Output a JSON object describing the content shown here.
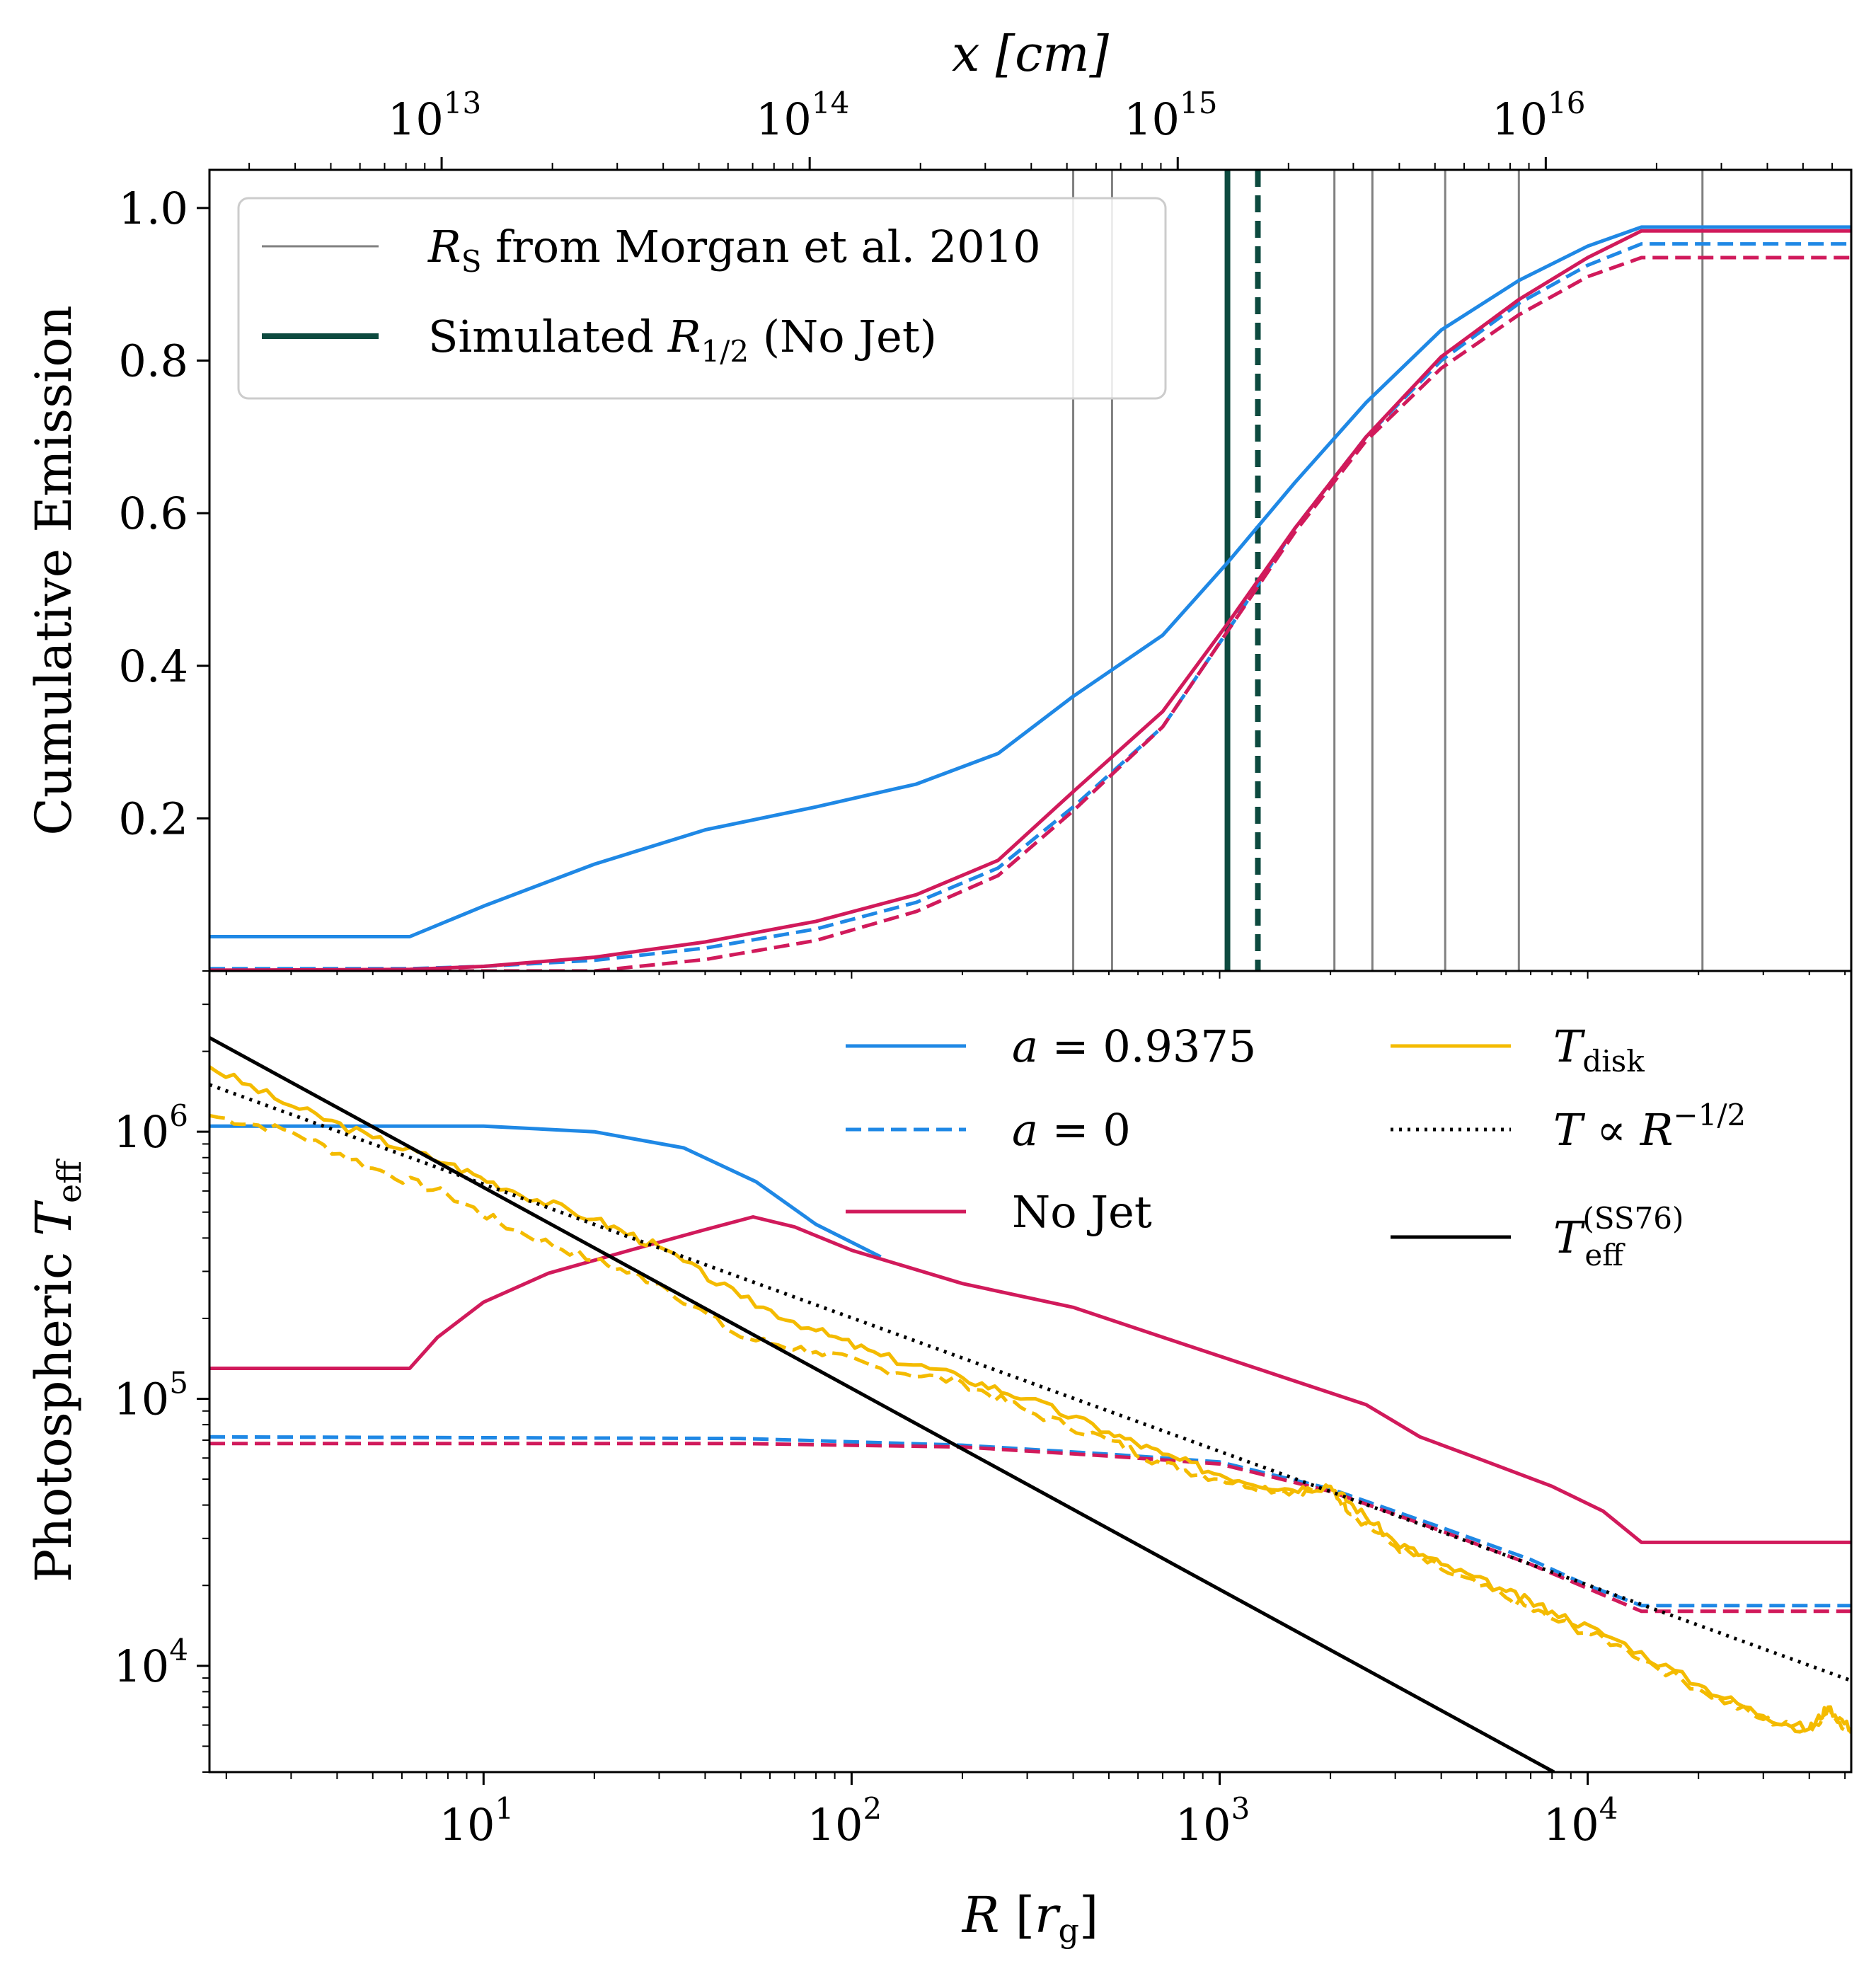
{
  "chart_data": [
    {
      "panel": "top",
      "type": "line",
      "ylabel": "Cumulative Emission",
      "xlabel_top": "x [cm]",
      "x_scale": "log",
      "xlim": [
        1.8,
        52000
      ],
      "ylim": [
        0.0,
        1.05
      ],
      "yticks": [
        0.2,
        0.4,
        0.6,
        0.8,
        1.0
      ],
      "ytick_labels": [
        "0.2",
        "0.4",
        "0.6",
        "0.8",
        "1.0"
      ],
      "top_axis": {
        "label": "x [cm]",
        "cm_per_rg": 1300000000000.0,
        "ticks": [
          10000000000000.0,
          100000000000000.0,
          1000000000000000.0,
          1e+16
        ],
        "tick_labels": [
          {
            "base": "10",
            "exp": "13"
          },
          {
            "base": "10",
            "exp": "14"
          },
          {
            "base": "10",
            "exp": "15"
          },
          {
            "base": "10",
            "exp": "16"
          }
        ]
      },
      "vlines_rs": [
        400,
        510,
        2050,
        2600,
        4100,
        6500,
        20500
      ],
      "vline_sim_nojet": 1050,
      "vline_sim_nojet_dashed": 1270,
      "legend": [
        {
          "key": "rs",
          "text": "R_S from Morgan et al. 2010",
          "style": "thin-gray"
        },
        {
          "key": "sim",
          "text": "Simulated R_1/2 (No Jet)",
          "style": "thick-green"
        }
      ],
      "series": [
        {
          "name": "a = 0.9375",
          "color": "#1f88e5",
          "dash": "solid",
          "x": [
            1.8,
            6.3,
            10,
            20,
            40,
            80,
            150,
            250,
            400,
            700,
            1050,
            1600,
            2500,
            4000,
            6500,
            10000,
            14000,
            52000
          ],
          "y": [
            0.045,
            0.045,
            0.085,
            0.14,
            0.185,
            0.215,
            0.245,
            0.285,
            0.36,
            0.44,
            0.535,
            0.64,
            0.745,
            0.84,
            0.905,
            0.95,
            0.975,
            0.975
          ]
        },
        {
          "name": "a = 0",
          "color": "#1f88e5",
          "dash": "dashed",
          "x": [
            1.8,
            6.3,
            10,
            20,
            40,
            80,
            150,
            250,
            400,
            700,
            1050,
            1600,
            2500,
            4000,
            6500,
            10000,
            14000,
            52000
          ],
          "y": [
            0.003,
            0.003,
            0.006,
            0.014,
            0.03,
            0.055,
            0.09,
            0.135,
            0.215,
            0.32,
            0.445,
            0.58,
            0.7,
            0.8,
            0.875,
            0.925,
            0.953,
            0.953
          ]
        },
        {
          "name": "No Jet",
          "color": "#d11a5b",
          "dash": "solid",
          "x": [
            1.8,
            6.3,
            10,
            20,
            40,
            80,
            150,
            250,
            400,
            700,
            1050,
            1600,
            2500,
            4000,
            6500,
            10000,
            14000,
            52000
          ],
          "y": [
            0.001,
            0.002,
            0.006,
            0.018,
            0.038,
            0.065,
            0.1,
            0.145,
            0.235,
            0.34,
            0.455,
            0.58,
            0.7,
            0.805,
            0.88,
            0.935,
            0.97,
            0.97
          ]
        },
        {
          "name": "No Jet (a = 0)",
          "color": "#d11a5b",
          "dash": "dashed",
          "x": [
            1.8,
            6.3,
            10,
            20,
            40,
            80,
            150,
            250,
            400,
            700,
            1050,
            1600,
            2500,
            4000,
            6500,
            10000,
            14000,
            52000
          ],
          "y": [
            0.0,
            0.0,
            0.0,
            0.0,
            0.015,
            0.04,
            0.078,
            0.125,
            0.21,
            0.32,
            0.445,
            0.575,
            0.695,
            0.79,
            0.86,
            0.91,
            0.935,
            0.935
          ]
        }
      ]
    },
    {
      "panel": "bottom",
      "type": "line",
      "xlabel": "R [r_g]",
      "ylabel": "Photospheric T_eff",
      "x_scale": "log",
      "y_scale": "log",
      "xlim": [
        1.8,
        52000
      ],
      "ylim": [
        4000,
        4000000
      ],
      "xtick_labels": [
        {
          "value": 10,
          "base": "10",
          "exp": "1"
        },
        {
          "value": 100,
          "base": "10",
          "exp": "2"
        },
        {
          "value": 1000,
          "base": "10",
          "exp": "3"
        },
        {
          "value": 10000,
          "base": "10",
          "exp": "4"
        }
      ],
      "ytick_labels": [
        {
          "value": 10000,
          "base": "10",
          "exp": "4"
        },
        {
          "value": 100000,
          "base": "10",
          "exp": "5"
        },
        {
          "value": 1000000,
          "base": "10",
          "exp": "6"
        }
      ],
      "legend": [
        {
          "key": "a9375",
          "text": "a = 0.9375"
        },
        {
          "key": "a0",
          "text": "a = 0"
        },
        {
          "key": "nojet",
          "text": "No Jet"
        },
        {
          "key": "tdisk",
          "text": "T_disk"
        },
        {
          "key": "tprop",
          "text": "T ∝ R^−1/2"
        },
        {
          "key": "tss",
          "text": "T_eff^(SS76)"
        }
      ],
      "series": [
        {
          "name": "a = 0.9375",
          "color": "#1f88e5",
          "dash": "solid",
          "x": [
            1.8,
            10,
            20,
            35,
            55,
            80,
            120
          ],
          "y": [
            1050000,
            1050000,
            1000000,
            870000,
            650000,
            450000,
            340000
          ]
        },
        {
          "name": "a = 0",
          "color": "#1f88e5",
          "dash": "dashed",
          "x": [
            1.8,
            50,
            200,
            500,
            1000,
            2000,
            4000,
            7000,
            10000,
            14000,
            52000
          ],
          "y": [
            72000,
            71000,
            67000,
            62000,
            58000,
            46000,
            33000,
            25000,
            20000,
            16800,
            16800
          ]
        },
        {
          "name": "No Jet",
          "color": "#d11a5b",
          "dash": "solid",
          "x": [
            1.8,
            6.3,
            7.5,
            10,
            15,
            25,
            40,
            54,
            70,
            100,
            200,
            400,
            800,
            1500,
            2500,
            3500,
            5000,
            8000,
            11000,
            14000,
            52000
          ],
          "y": [
            130000,
            130000,
            170000,
            230000,
            295000,
            360000,
            430000,
            480000,
            440000,
            360000,
            270000,
            220000,
            160000,
            120000,
            95000,
            72000,
            60000,
            47000,
            38000,
            29000,
            29000
          ]
        },
        {
          "name": "No Jet (a = 0)",
          "color": "#d11a5b",
          "dash": "dashed",
          "x": [
            1.8,
            50,
            200,
            500,
            1000,
            2000,
            4000,
            7000,
            10000,
            14000,
            52000
          ],
          "y": [
            68000,
            68000,
            66000,
            61000,
            57000,
            45000,
            32000,
            24000,
            19500,
            16000,
            16000
          ]
        },
        {
          "name": "T_disk",
          "color": "#f4bb00",
          "dash": "solid",
          "noisy": true,
          "x": [
            1.8,
            3,
            5,
            8,
            12,
            20,
            30,
            50,
            80,
            120,
            200,
            300,
            500,
            700,
            1000,
            1500,
            2000,
            2300,
            3000,
            4000,
            6000,
            8000,
            12000,
            20000,
            30000,
            40000,
            45000,
            52000
          ],
          "y": [
            1750000,
            1250000,
            950000,
            760000,
            600000,
            470000,
            370000,
            240000,
            180000,
            145000,
            120000,
            100000,
            75000,
            62000,
            52000,
            46000,
            47000,
            40000,
            29000,
            24000,
            19000,
            16000,
            12500,
            8500,
            6500,
            5800,
            7000,
            5800
          ]
        },
        {
          "name": "T_disk (a = 0)",
          "color": "#f4bb00",
          "dash": "dashed",
          "noisy": true,
          "x": [
            1.8,
            3,
            5,
            8,
            12,
            20,
            30,
            50,
            80,
            120,
            200,
            300,
            500,
            700,
            1000,
            1500,
            2000,
            2300,
            3000,
            4000,
            6000,
            8000,
            12000,
            20000,
            30000,
            40000,
            45000,
            52000
          ],
          "y": [
            1150000,
            1000000,
            730000,
            580000,
            430000,
            330000,
            270000,
            170000,
            150000,
            130000,
            115000,
            90000,
            70000,
            57000,
            50000,
            45000,
            46000,
            37000,
            28000,
            23000,
            18000,
            15000,
            12000,
            8200,
            6300,
            5700,
            6800,
            5600
          ]
        },
        {
          "name": "T ∝ R^-1/2",
          "color": "#000000",
          "dash": "dotted",
          "x": [
            1.8,
            52000
          ],
          "y": [
            1500000,
            8800
          ]
        },
        {
          "name": "T_eff (SS76)",
          "color": "#000000",
          "dash": "solid",
          "x": [
            1.8,
            8100
          ],
          "y": [
            2250000,
            4000
          ]
        }
      ]
    }
  ]
}
